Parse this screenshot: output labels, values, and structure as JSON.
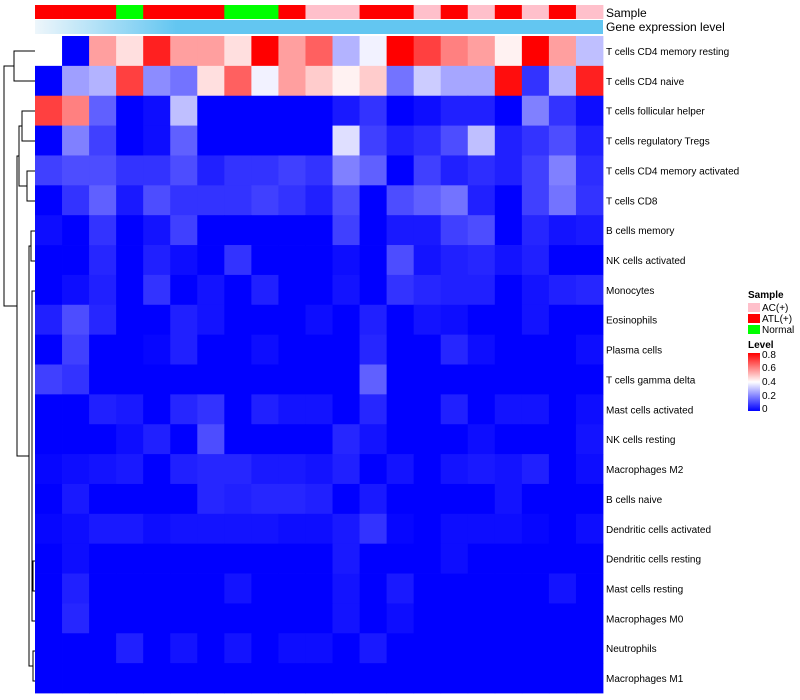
{
  "chart_data": {
    "type": "heatmap",
    "title": "",
    "annotation_tracks": [
      {
        "name": "Sample",
        "label": "Sample"
      },
      {
        "name": "Gene expression level",
        "label": "Gene expression level",
        "color": "#63c6f1",
        "gradient_start": "#eef6fb"
      }
    ],
    "sample_groups": [
      "ATL(+)",
      "ATL(+)",
      "ATL(+)",
      "Normal",
      "ATL(+)",
      "ATL(+)",
      "ATL(+)",
      "Normal",
      "Normal",
      "ATL(+)",
      "AC(+)",
      "AC(+)",
      "ATL(+)",
      "ATL(+)",
      "AC(+)",
      "ATL(+)",
      "AC(+)",
      "ATL(+)",
      "AC(+)",
      "ATL(+)",
      "AC(+)"
    ],
    "rows": [
      "T cells CD4 memory resting",
      "T cells CD4 naive",
      "T cells follicular helper",
      "T cells regulatory  Tregs",
      "T cells CD4 memory activated",
      "T cells CD8",
      "B cells memory",
      "NK cells activated",
      "Monocytes",
      "Eosinophils",
      "Plasma cells",
      "T cells gamma delta",
      "Mast cells activated",
      "NK cells resting",
      "Macrophages M2",
      "B cells naive",
      "Dendritic cells activated",
      "Dendritic cells resting",
      "Mast cells resting",
      "Macrophages M0",
      "Neutrophils",
      "Macrophages M1"
    ],
    "values": [
      [
        0.4,
        0.0,
        0.55,
        0.45,
        0.75,
        0.55,
        0.55,
        0.45,
        0.8,
        0.55,
        0.65,
        0.28,
        0.38,
        0.8,
        0.7,
        0.6,
        0.55,
        0.42,
        0.8,
        0.55,
        0.3
      ],
      [
        0.0,
        0.25,
        0.28,
        0.7,
        0.22,
        0.18,
        0.45,
        0.65,
        0.38,
        0.55,
        0.48,
        0.42,
        0.48,
        0.18,
        0.32,
        0.26,
        0.26,
        0.78,
        0.08,
        0.28,
        0.75
      ],
      [
        0.7,
        0.6,
        0.15,
        0.0,
        0.02,
        0.3,
        0.0,
        0.0,
        0.0,
        0.0,
        0.0,
        0.04,
        0.08,
        0.0,
        0.02,
        0.05,
        0.05,
        0.0,
        0.2,
        0.08,
        0.02
      ],
      [
        0.0,
        0.2,
        0.1,
        0.0,
        0.02,
        0.15,
        0.0,
        0.0,
        0.0,
        0.0,
        0.0,
        0.35,
        0.1,
        0.05,
        0.07,
        0.12,
        0.3,
        0.05,
        0.08,
        0.12,
        0.05
      ],
      [
        0.1,
        0.12,
        0.12,
        0.08,
        0.08,
        0.12,
        0.05,
        0.08,
        0.08,
        0.1,
        0.08,
        0.2,
        0.15,
        0.0,
        0.1,
        0.05,
        0.07,
        0.05,
        0.1,
        0.2,
        0.07
      ],
      [
        0.0,
        0.08,
        0.15,
        0.04,
        0.12,
        0.08,
        0.08,
        0.08,
        0.1,
        0.08,
        0.05,
        0.12,
        0.0,
        0.12,
        0.15,
        0.18,
        0.05,
        0.0,
        0.1,
        0.18,
        0.08
      ],
      [
        0.02,
        0.0,
        0.08,
        0.0,
        0.03,
        0.1,
        0.0,
        0.0,
        0.0,
        0.0,
        0.0,
        0.1,
        0.0,
        0.04,
        0.04,
        0.1,
        0.12,
        0.0,
        0.06,
        0.03,
        0.04
      ],
      [
        0.0,
        0.0,
        0.06,
        0.0,
        0.05,
        0.02,
        0.0,
        0.08,
        0.0,
        0.0,
        0.0,
        0.02,
        0.0,
        0.12,
        0.03,
        0.05,
        0.06,
        0.03,
        0.05,
        0.0,
        0.0
      ],
      [
        0.0,
        0.02,
        0.05,
        0.0,
        0.08,
        0.0,
        0.03,
        0.0,
        0.05,
        0.0,
        0.0,
        0.03,
        0.0,
        0.08,
        0.06,
        0.05,
        0.05,
        0.0,
        0.03,
        0.05,
        0.06
      ],
      [
        0.05,
        0.12,
        0.06,
        0.0,
        0.0,
        0.05,
        0.03,
        0.0,
        0.0,
        0.0,
        0.02,
        0.0,
        0.05,
        0.0,
        0.03,
        0.02,
        0.0,
        0.0,
        0.03,
        0.0,
        0.0
      ],
      [
        0.0,
        0.1,
        0.0,
        0.0,
        0.01,
        0.05,
        0.0,
        0.0,
        0.02,
        0.0,
        0.0,
        0.0,
        0.06,
        0.0,
        0.0,
        0.06,
        0.02,
        0.0,
        0.0,
        0.0,
        0.02
      ],
      [
        0.1,
        0.08,
        0.0,
        0.0,
        0.0,
        0.0,
        0.0,
        0.0,
        0.0,
        0.0,
        0.0,
        0.0,
        0.15,
        0.0,
        0.0,
        0.0,
        0.0,
        0.0,
        0.0,
        0.0,
        0.0
      ],
      [
        0.0,
        0.0,
        0.05,
        0.04,
        0.0,
        0.06,
        0.08,
        0.0,
        0.05,
        0.03,
        0.03,
        0.0,
        0.06,
        0.0,
        0.0,
        0.05,
        0.0,
        0.03,
        0.03,
        0.0,
        0.02
      ],
      [
        0.0,
        0.0,
        0.0,
        0.02,
        0.05,
        0.0,
        0.12,
        0.0,
        0.0,
        0.0,
        0.0,
        0.06,
        0.03,
        0.0,
        0.0,
        0.0,
        0.02,
        0.0,
        0.0,
        0.0,
        0.03
      ],
      [
        0.01,
        0.02,
        0.03,
        0.04,
        0.0,
        0.05,
        0.06,
        0.06,
        0.04,
        0.04,
        0.03,
        0.05,
        0.0,
        0.03,
        0.0,
        0.03,
        0.04,
        0.03,
        0.05,
        0.0,
        0.02
      ],
      [
        0.0,
        0.04,
        0.0,
        0.0,
        0.0,
        0.0,
        0.06,
        0.05,
        0.06,
        0.06,
        0.05,
        0.0,
        0.04,
        0.0,
        0.0,
        0.0,
        0.0,
        0.03,
        0.0,
        0.0,
        0.0
      ],
      [
        0.01,
        0.02,
        0.04,
        0.04,
        0.02,
        0.03,
        0.03,
        0.03,
        0.03,
        0.02,
        0.02,
        0.04,
        0.08,
        0.01,
        0.0,
        0.02,
        0.02,
        0.02,
        0.01,
        0.0,
        0.02
      ],
      [
        0.0,
        0.02,
        0.0,
        0.0,
        0.0,
        0.0,
        0.0,
        0.0,
        0.0,
        0.0,
        0.0,
        0.04,
        0.0,
        0.0,
        0.0,
        0.02,
        0.0,
        0.0,
        0.0,
        0.0,
        0.0
      ],
      [
        0.0,
        0.05,
        0.0,
        0.0,
        0.0,
        0.0,
        0.0,
        0.03,
        0.0,
        0.0,
        0.0,
        0.03,
        0.0,
        0.04,
        0.0,
        0.0,
        0.0,
        0.0,
        0.0,
        0.03,
        0.0
      ],
      [
        0.0,
        0.06,
        0.0,
        0.0,
        0.0,
        0.0,
        0.0,
        0.0,
        0.0,
        0.0,
        0.0,
        0.03,
        0.0,
        0.02,
        0.0,
        0.0,
        0.0,
        0.0,
        0.0,
        0.0,
        0.0
      ],
      [
        0.0,
        0.0,
        0.0,
        0.05,
        0.0,
        0.03,
        0.0,
        0.03,
        0.0,
        0.02,
        0.02,
        0.0,
        0.04,
        0.0,
        0.0,
        0.0,
        0.0,
        0.0,
        0.0,
        0.0,
        0.0
      ],
      [
        0.0,
        0.0,
        0.0,
        0.0,
        0.0,
        0.0,
        0.0,
        0.0,
        0.0,
        0.0,
        0.0,
        0.0,
        0.0,
        0.0,
        0.0,
        0.0,
        0.0,
        0.0,
        0.0,
        0.0,
        0.0
      ]
    ],
    "color_scale": {
      "min": 0,
      "max": 0.8,
      "low": "#0000ff",
      "mid": "#ffffff",
      "high": "#ff0000",
      "mid_value": 0.4
    },
    "legend": {
      "sample_title": "Sample",
      "sample_entries": [
        {
          "label": "AC(+)",
          "color": "#ffc0cb"
        },
        {
          "label": "ATL(+)",
          "color": "#ff0000"
        },
        {
          "label": "Normal",
          "color": "#00ff00"
        }
      ],
      "level_title": "Level",
      "level_ticks": [
        "0.8",
        "0.6",
        "0.4",
        "0.2",
        "0"
      ],
      "placement": "right"
    },
    "dendrogram": "rows"
  }
}
